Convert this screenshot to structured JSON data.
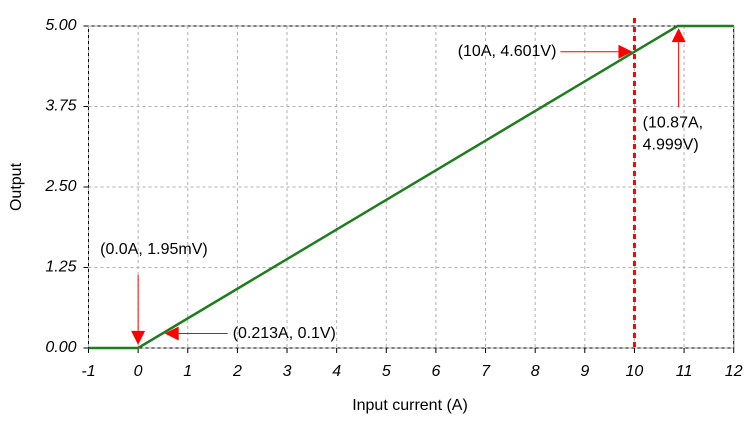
{
  "chart_data": {
    "type": "line",
    "xlabel": "Input current (A)",
    "ylabel": "Output",
    "x": [
      -1,
      0,
      10.87,
      12
    ],
    "series": [
      {
        "color": "#1e7d1e",
        "values": [
          0,
          0,
          5,
          5
        ]
      }
    ],
    "xlim": [
      -1,
      12
    ],
    "xticks": [
      -1,
      0,
      1,
      2,
      3,
      4,
      5,
      6,
      7,
      8,
      9,
      10,
      11,
      12
    ],
    "ylim": [
      0,
      5
    ],
    "yticks": [
      {
        "value": 0,
        "label": "0.00"
      },
      {
        "value": 1.25,
        "label": "1.25"
      },
      {
        "value": 2.5,
        "label": "2.50"
      },
      {
        "value": 3.75,
        "label": "3.75"
      },
      {
        "value": 5,
        "label": "5.00"
      }
    ],
    "grid": true,
    "vline": {
      "x": 10,
      "color": "#ff0000"
    },
    "annotations": [
      {
        "lines": [
          "(0.0A, 1.95mV)"
        ],
        "x": 0,
        "y": 0.00195,
        "color": "#ff0000"
      },
      {
        "lines": [
          "(0.213A, 0.1V)"
        ],
        "x": 0.213,
        "y": 0.1,
        "color": "#ff0000"
      },
      {
        "lines": [
          "(10A, 4.601V)"
        ],
        "x": 10,
        "y": 4.601,
        "color": "#ff0000"
      },
      {
        "lines": [
          "(10.87A,",
          "4.999V)"
        ],
        "x": 10.87,
        "y": 4.999,
        "color": "#ff0000"
      }
    ]
  }
}
